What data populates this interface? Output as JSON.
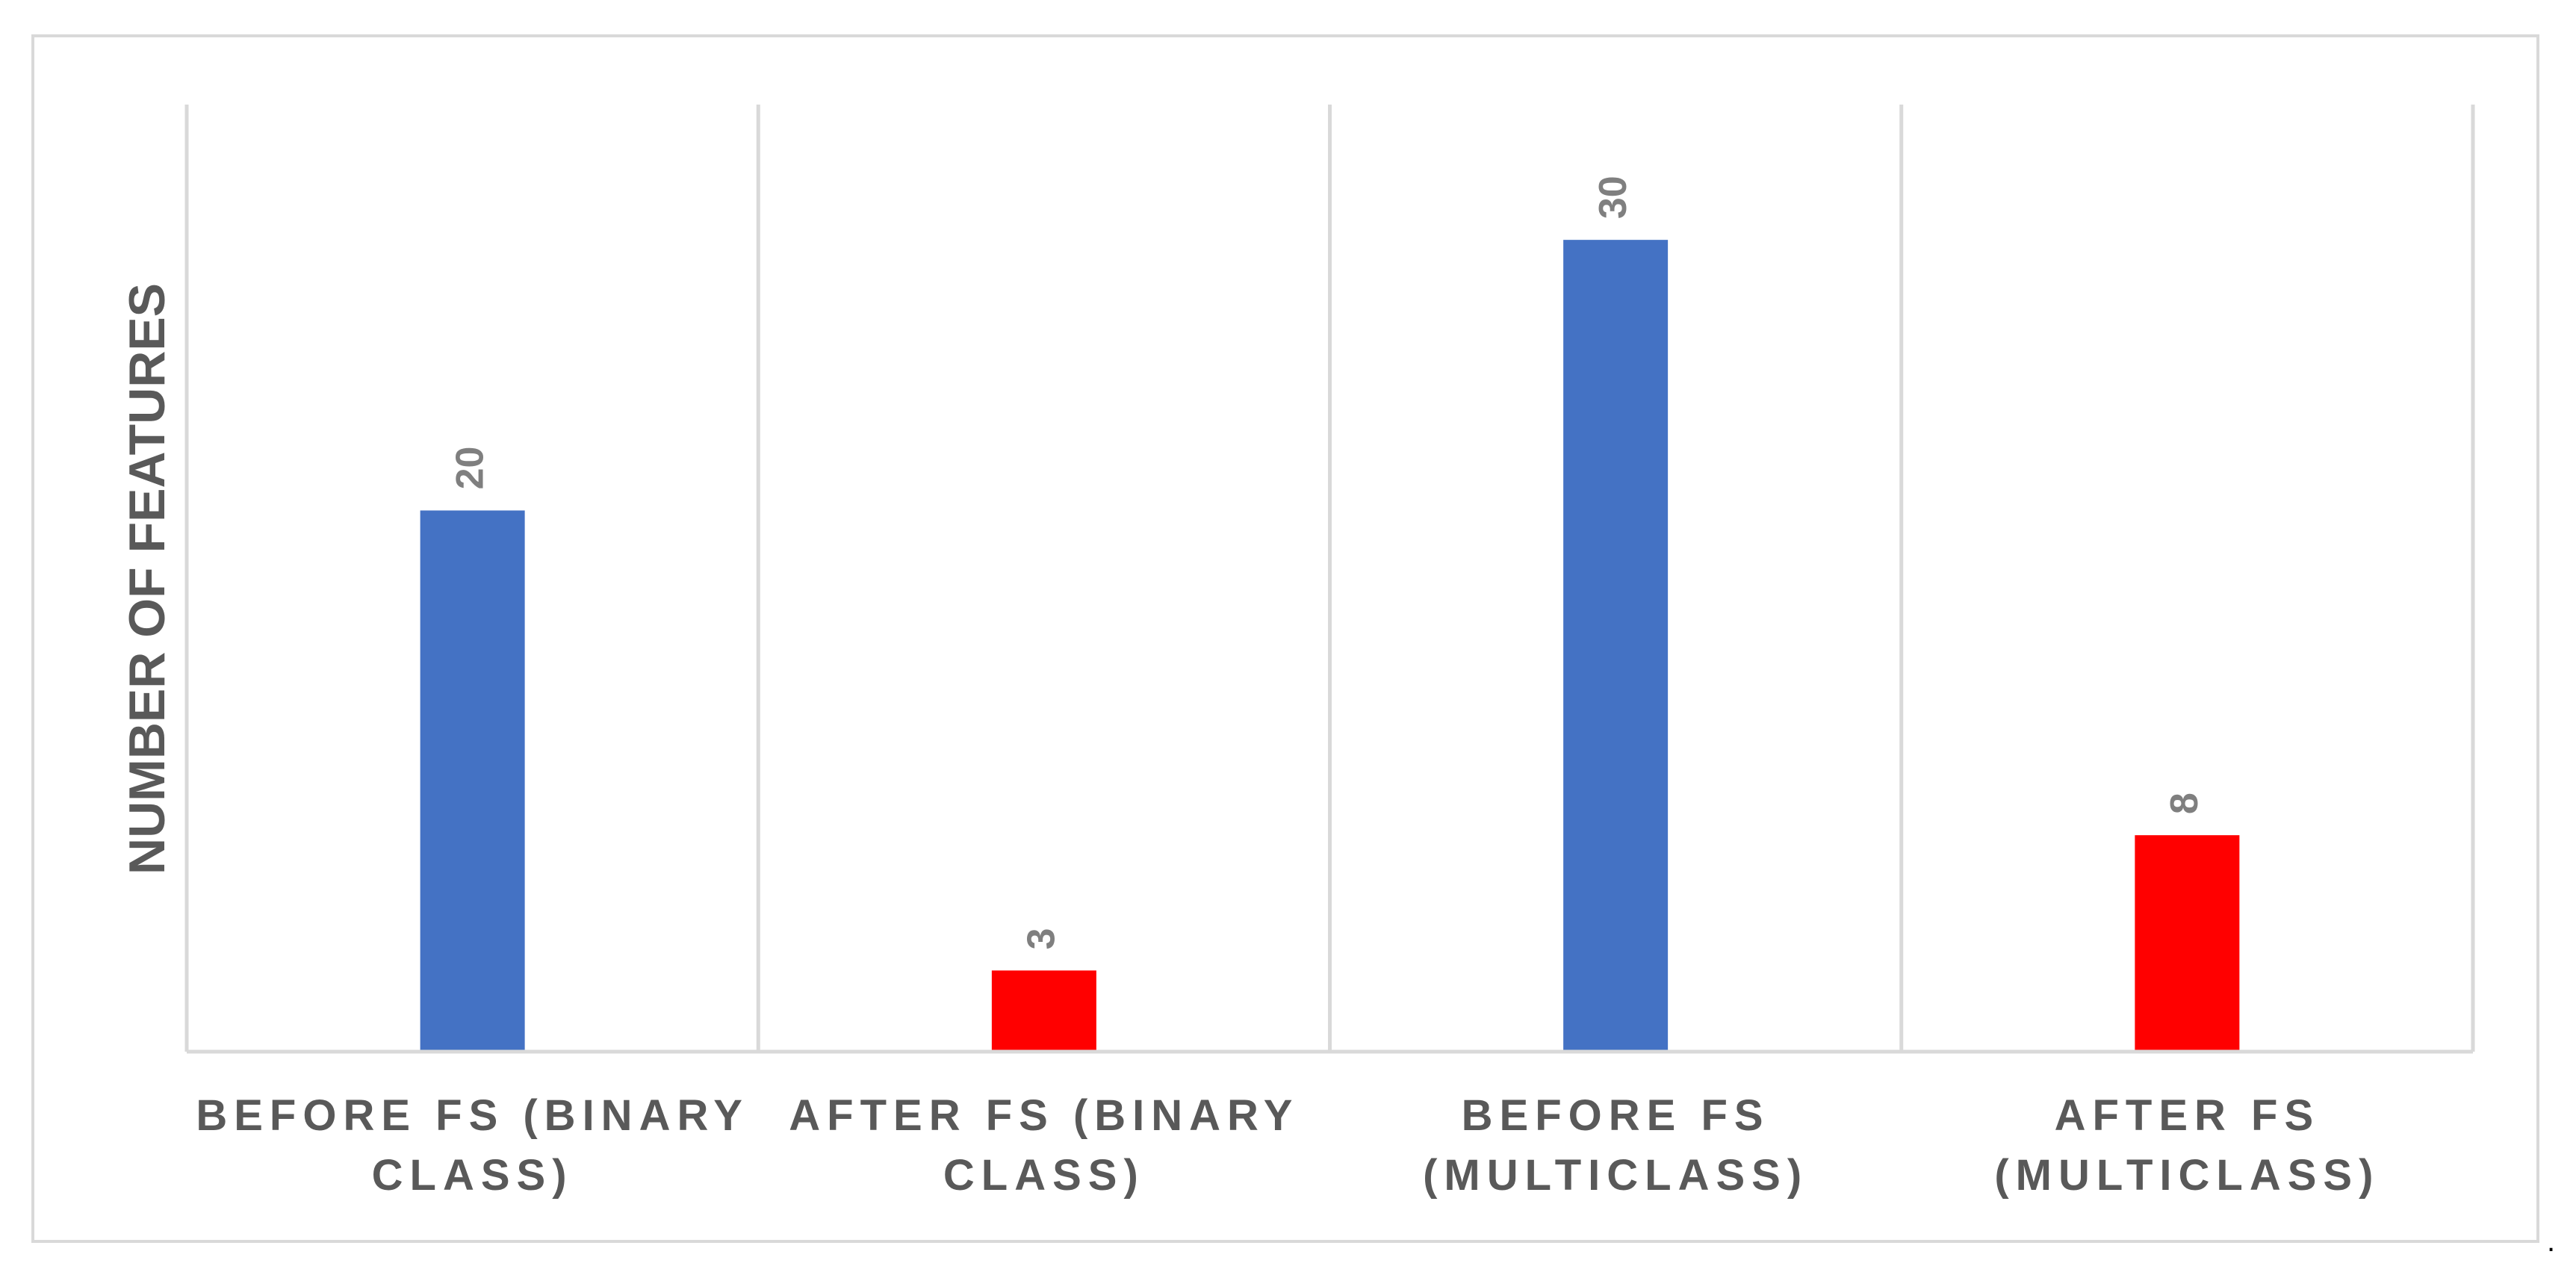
{
  "chart_data": {
    "type": "bar",
    "title": "",
    "xlabel": "",
    "ylabel": "NUMBER OF FEATURES",
    "categories": [
      "BEFORE FS (BINARY CLASS)",
      "AFTER FS (BINARY CLASS)",
      "BEFORE FS (MULTICLASS)",
      "AFTER FS (MULTICLASS)"
    ],
    "category_lines": [
      [
        "BEFORE FS (BINARY",
        "CLASS)"
      ],
      [
        "AFTER FS (BINARY",
        "CLASS)"
      ],
      [
        "BEFORE FS",
        "(MULTICLASS)"
      ],
      [
        "AFTER FS",
        "(MULTICLASS)"
      ]
    ],
    "values": [
      20,
      3,
      30,
      8
    ],
    "bar_colors": [
      "#4472c4",
      "#ff0000",
      "#4472c4",
      "#ff0000"
    ],
    "ylim": [
      0,
      35
    ],
    "grid": "vertical category separators",
    "legend": "none",
    "data_labels": true
  },
  "trailing_mark": "."
}
